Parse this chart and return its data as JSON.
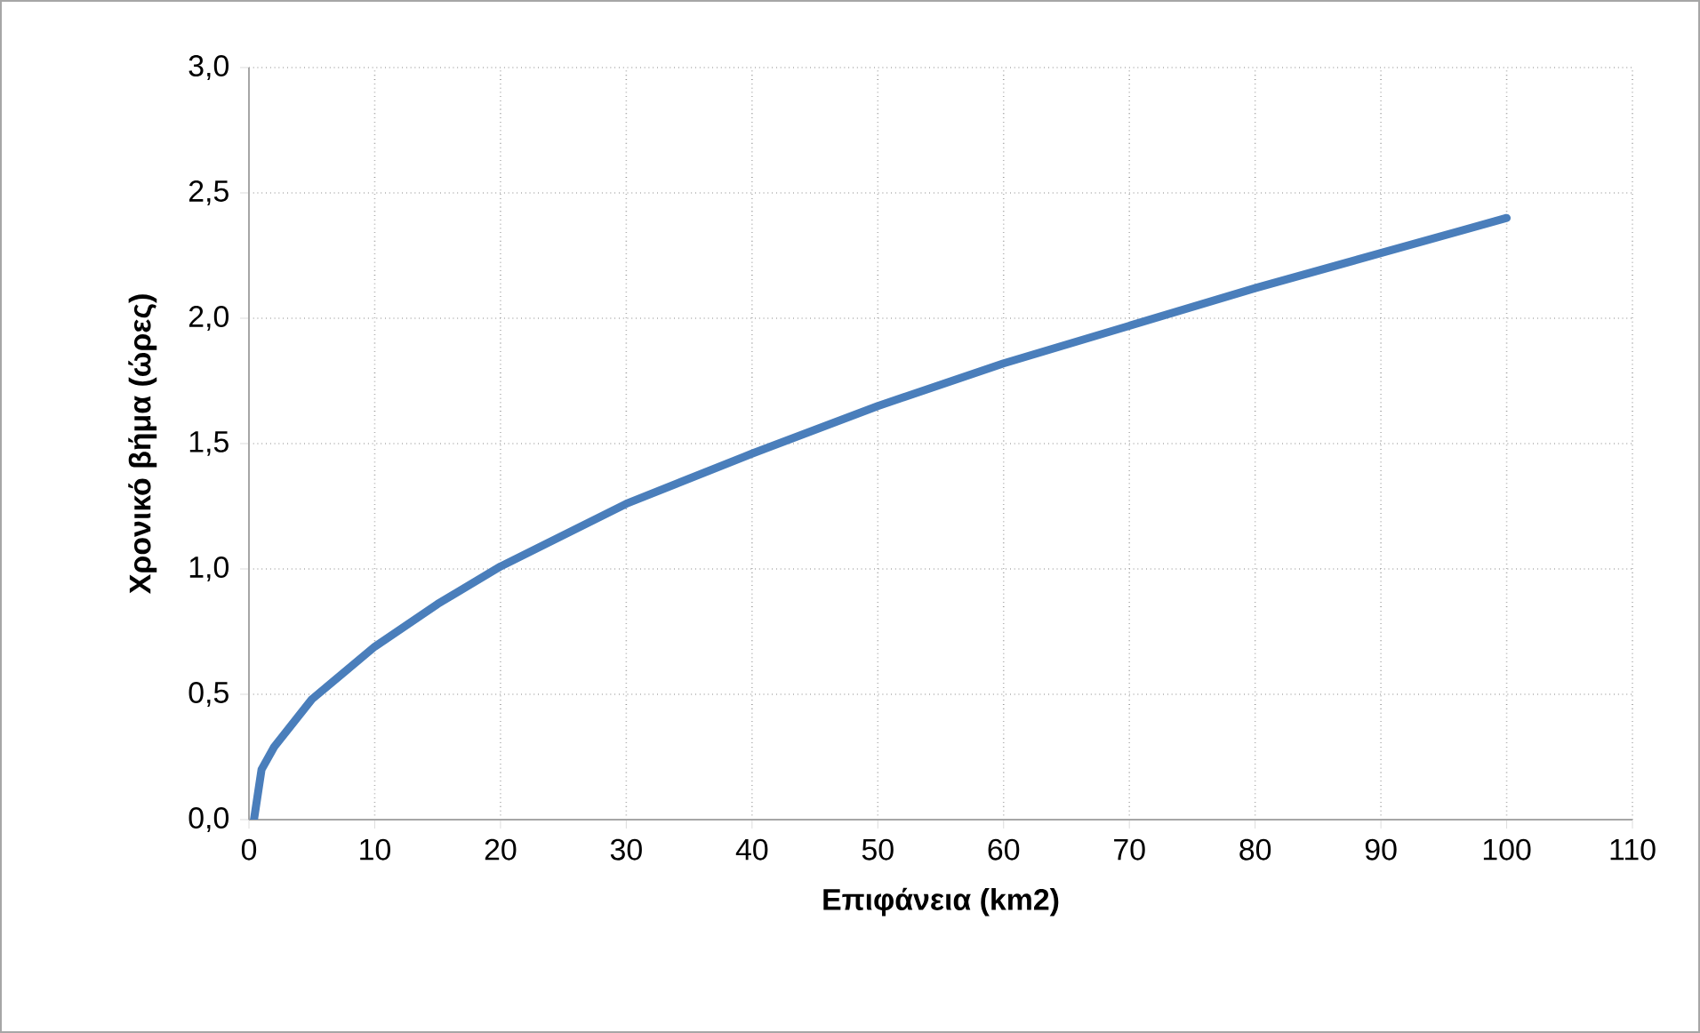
{
  "chart_data": {
    "type": "line",
    "xlabel": "Επιφάνεια (km2)",
    "ylabel": "Χρονικό βήμα (ώρες)",
    "x": [
      0.4,
      1,
      2,
      5,
      10,
      15,
      20,
      30,
      40,
      50,
      60,
      70,
      80,
      90,
      100
    ],
    "values": [
      0.0,
      0.2,
      0.29,
      0.48,
      0.69,
      0.86,
      1.01,
      1.26,
      1.46,
      1.65,
      1.82,
      1.97,
      2.12,
      2.26,
      2.4
    ],
    "color": "#4a7ebb",
    "marker": "none",
    "line_style": "solid",
    "xlim": [
      0,
      110
    ],
    "ylim": [
      0,
      3.0
    ],
    "xticks": [
      0,
      10,
      20,
      30,
      40,
      50,
      60,
      70,
      80,
      90,
      100,
      110
    ],
    "yticks": [
      {
        "value": 0,
        "label": "0,0"
      },
      {
        "value": 0.5,
        "label": "0,5"
      },
      {
        "value": 1.0,
        "label": "1,0"
      },
      {
        "value": 1.5,
        "label": "1,5"
      },
      {
        "value": 2.0,
        "label": "2,0"
      },
      {
        "value": 2.5,
        "label": "2,5"
      },
      {
        "value": 3.0,
        "label": "3,0"
      }
    ],
    "grid": true
  }
}
